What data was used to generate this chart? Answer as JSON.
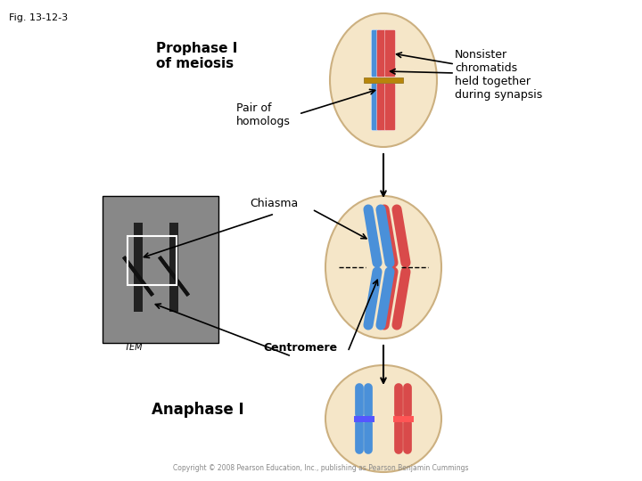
{
  "fig_label": "Fig. 13-12-3",
  "bg_color": "#ffffff",
  "title_prophase": "Prophase I\nof meiosis",
  "label_pair_homologs": "Pair of\nhomologs",
  "label_chiasma": "Chiasma",
  "label_centromere": "Centromere",
  "label_tem": "TEM",
  "label_anaphase": "Anaphase I",
  "label_nonsister": "Nonsister\nchromatids\nheld together\nduring synapsis",
  "copyright": "Copyright © 2008 Pearson Education, Inc., publishing as Pearson Benjamin Cummings",
  "cell_bg": "#f5e6c8",
  "cell_edge": "#ccb080",
  "blue_color": "#4a90d9",
  "red_color": "#d94a4a",
  "arrow_color": "#333333"
}
